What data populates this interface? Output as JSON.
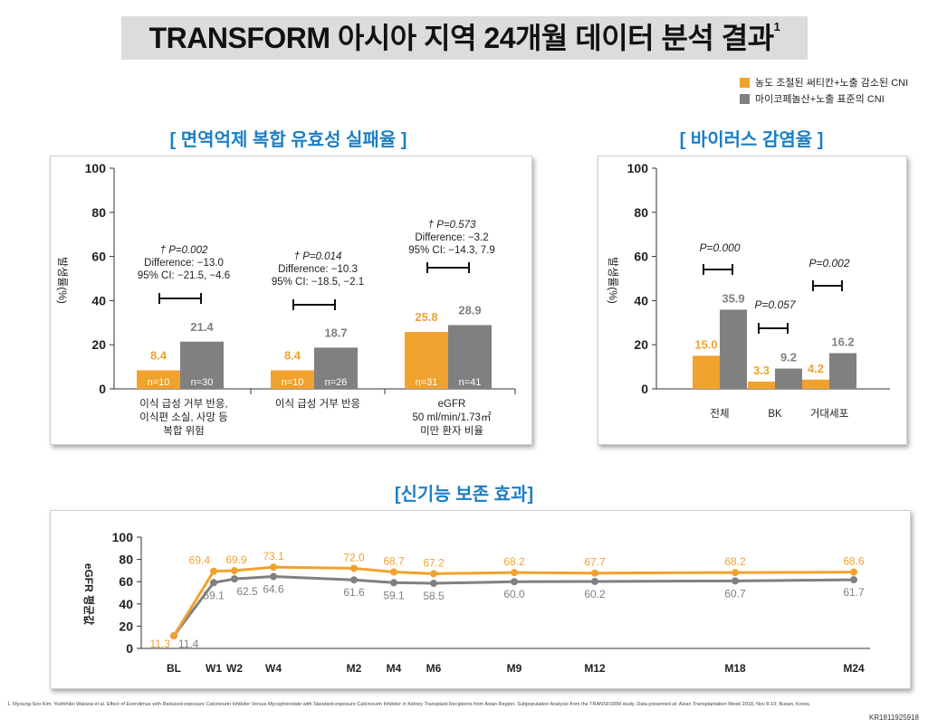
{
  "page": {
    "title": "TRANSFORM 아시아 지역 24개월 데이터 분석 결과",
    "title_sup": "1",
    "footnote": "1. Myoung-Soo Kim, Yoshihiko Watarai et al. Effect of Everolimus with Reduced-exposure Calcineurin Inhibitor Versus Mycophenolate with Standard-exposure Calcineurin Inhibitor in Kidney Transplant Recipients from Asian Region: Subpopulation Analysis from the TRANSFORM study. Data presented at: Asian Transplantation Week 2018, Nov 8-10; Busan, Korea.",
    "doc_code": "KR1811925918"
  },
  "legend": [
    {
      "label": "농도 조절된 써티칸+노출 감소된 CNI",
      "color": "#f0a22e"
    },
    {
      "label": "마이코페놀산+노출 표준의 CNI",
      "color": "#808080"
    }
  ],
  "colors": {
    "orange": "#f0a22e",
    "gray": "#808080",
    "accent": "#1c7fc4"
  },
  "sections": {
    "efficacy": "[ 면역억제 복합 유효성 실패율 ]",
    "virus": "[ 바이러스 감염율 ]",
    "renal": "[신기능 보존 효과]"
  },
  "chart_data": [
    {
      "type": "bar",
      "ylabel": "발생률(%)",
      "ylim": [
        0,
        100
      ],
      "yticks": [
        0,
        20,
        40,
        60,
        80,
        100
      ],
      "categories": [
        [
          "이식 급성 거부 반응,",
          "이식편 소실, 사망 등",
          "복합 위험"
        ],
        [
          "이식 급성 거부 반응"
        ],
        [
          "eGFR",
          "50 ml/min/1.73㎡",
          "미만 환자 비율"
        ]
      ],
      "series": [
        {
          "values": [
            8.4,
            8.4,
            25.8
          ],
          "n_labels": [
            "n=10",
            "n=10",
            "n=31"
          ]
        },
        {
          "values": [
            21.4,
            18.7,
            28.9
          ],
          "n_labels": [
            "n=30",
            "n=26",
            "n=41"
          ]
        }
      ],
      "annotations": [
        {
          "lines": [
            "† P=0.002",
            "Difference: −13.0",
            "95% CI: −21.5, −4.6"
          ]
        },
        {
          "lines": [
            "† P=0.014",
            "Difference: −10.3",
            "95% CI: −18.5, −2.1"
          ]
        },
        {
          "lines": [
            "† P=0.573",
            "Difference: −3.2",
            "95% CI: −14.3, 7.9"
          ]
        }
      ]
    },
    {
      "type": "bar",
      "ylabel": "발생률(%)",
      "ylim": [
        0,
        100
      ],
      "yticks": [
        0,
        20,
        40,
        60,
        80,
        100
      ],
      "categories": [
        "전체",
        "BK",
        "거대세포"
      ],
      "series": [
        {
          "values": [
            15.0,
            3.3,
            4.2
          ]
        },
        {
          "values": [
            35.9,
            9.2,
            16.2
          ]
        }
      ],
      "annotations": [
        "P=0.000",
        "P=0.057",
        "P=0.002"
      ]
    },
    {
      "type": "line",
      "ylabel": "eGFR 평균값",
      "ylim": [
        0,
        100
      ],
      "yticks": [
        0,
        20,
        40,
        60,
        80,
        100
      ],
      "x": [
        "BL",
        "W1",
        "W2",
        "W4",
        "M2",
        "M4",
        "M6",
        "M9",
        "M12",
        "M18",
        "M24"
      ],
      "x_days": [
        0,
        7,
        14,
        28,
        61,
        122,
        183,
        274,
        365,
        548,
        730
      ],
      "series": [
        {
          "values": [
            11.3,
            69.4,
            69.9,
            73.1,
            72.0,
            68.7,
            67.2,
            68.2,
            67.7,
            68.2,
            68.6
          ],
          "labels": [
            "11.3",
            "69.4",
            "69.9",
            "73.1",
            "72.0",
            "68.7",
            "67.2",
            "68.2",
            "67.7",
            "68.2",
            "68.6"
          ]
        },
        {
          "values": [
            11.4,
            59.1,
            62.5,
            64.6,
            61.6,
            59.1,
            58.5,
            60.0,
            60.2,
            60.7,
            61.7
          ],
          "labels": [
            "11.4",
            "59.1",
            "62.5",
            "64.6",
            "61.6",
            "59.1",
            "58.5",
            "60.0",
            "60.2",
            "60.7",
            "61.7"
          ]
        }
      ]
    }
  ]
}
